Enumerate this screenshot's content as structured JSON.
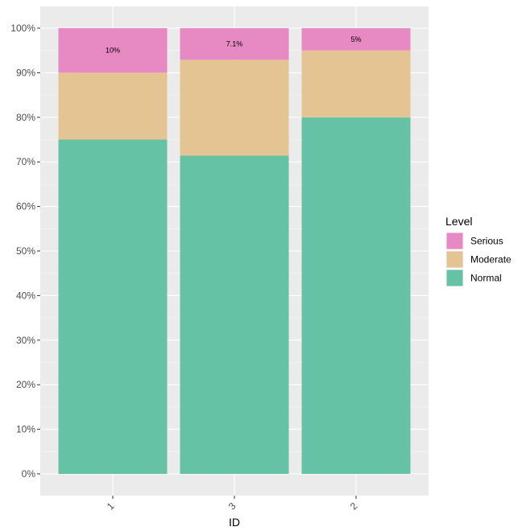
{
  "chart_data": {
    "type": "bar",
    "stacked": true,
    "percent_stacked": true,
    "categories": [
      "1",
      "3",
      "2"
    ],
    "series": [
      {
        "name": "Normal",
        "color": "#66C2A5",
        "values": [
          75,
          71.4,
          80
        ]
      },
      {
        "name": "Moderate",
        "color": "#E5C494",
        "values": [
          15,
          21.5,
          15
        ]
      },
      {
        "name": "Serious",
        "color": "#E78AC3",
        "values": [
          10,
          7.1,
          5
        ]
      }
    ],
    "data_labels": [
      {
        "category": "1",
        "series": "Serious",
        "text": "10%"
      },
      {
        "category": "3",
        "series": "Serious",
        "text": "7.1%"
      },
      {
        "category": "2",
        "series": "Serious",
        "text": "5%"
      }
    ],
    "title": "",
    "xlabel": "ID",
    "ylabel": "",
    "ylim": [
      0,
      100
    ],
    "yticks": [
      "0%",
      "10%",
      "20%",
      "30%",
      "40%",
      "50%",
      "60%",
      "70%",
      "80%",
      "90%",
      "100%"
    ],
    "legend": {
      "title": "Level",
      "entries": [
        "Serious",
        "Moderate",
        "Normal"
      ],
      "placement": "right"
    },
    "grid": true,
    "x_tick_rotation": "rotated"
  }
}
